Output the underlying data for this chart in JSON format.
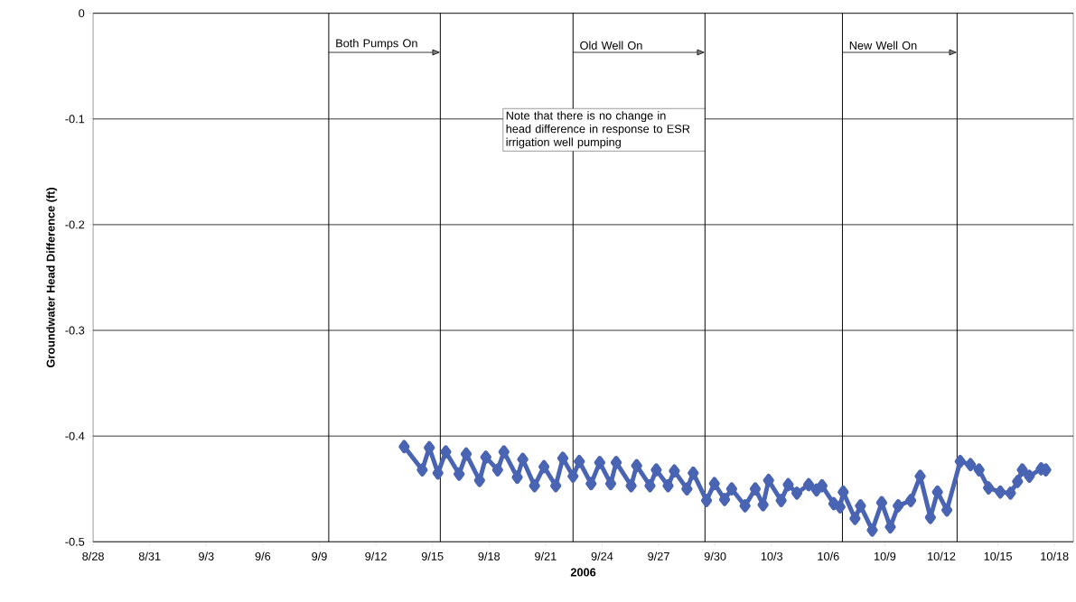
{
  "chart_data": {
    "type": "line",
    "xlabel": "2006",
    "ylabel": "Groundwater Head Difference (ft)",
    "xlim": [
      "2006-08-28",
      "2006-10-19"
    ],
    "ylim": [
      -0.5,
      0
    ],
    "xticks": [
      {
        "value": "2006-08-28",
        "label": "8/28"
      },
      {
        "value": "2006-08-31",
        "label": "8/31"
      },
      {
        "value": "2006-09-03",
        "label": "9/3"
      },
      {
        "value": "2006-09-06",
        "label": "9/6"
      },
      {
        "value": "2006-09-09",
        "label": "9/9"
      },
      {
        "value": "2006-09-12",
        "label": "9/12"
      },
      {
        "value": "2006-09-15",
        "label": "9/15"
      },
      {
        "value": "2006-09-18",
        "label": "9/18"
      },
      {
        "value": "2006-09-21",
        "label": "9/21"
      },
      {
        "value": "2006-09-24",
        "label": "9/24"
      },
      {
        "value": "2006-09-27",
        "label": "9/27"
      },
      {
        "value": "2006-09-30",
        "label": "9/30"
      },
      {
        "value": "2006-10-03",
        "label": "10/3"
      },
      {
        "value": "2006-10-06",
        "label": "10/6"
      },
      {
        "value": "2006-10-09",
        "label": "10/9"
      },
      {
        "value": "2006-10-12",
        "label": "10/12"
      },
      {
        "value": "2006-10-15",
        "label": "10/15"
      },
      {
        "value": "2006-10-18",
        "label": "10/18"
      }
    ],
    "yticks": [
      0,
      -0.1,
      -0.2,
      -0.3,
      -0.4,
      -0.5
    ],
    "grid": "y",
    "marker": "diamond",
    "line_style": "solid",
    "series": [
      {
        "color": "#4a64b4",
        "x": [
          "2006-09-13T12:00",
          "2006-09-14T11:00",
          "2006-09-14T20:00",
          "2006-09-15T07:00",
          "2006-09-15T17:00",
          "2006-09-16T10:00",
          "2006-09-16T19:00",
          "2006-09-17T12:00",
          "2006-09-17T20:00",
          "2006-09-18T11:00",
          "2006-09-18T19:00",
          "2006-09-19T12:00",
          "2006-09-19T19:00",
          "2006-09-20T10:00",
          "2006-09-20T22:00",
          "2006-09-21T13:00",
          "2006-09-21T22:00",
          "2006-09-22T11:00",
          "2006-09-22T19:00",
          "2006-09-23T10:00",
          "2006-09-23T21:00",
          "2006-09-24T11:00",
          "2006-09-24T18:00",
          "2006-09-25T13:00",
          "2006-09-25T20:00",
          "2006-09-26T13:00",
          "2006-09-26T21:00",
          "2006-09-27T12:00",
          "2006-09-27T20:00",
          "2006-09-28T12:00",
          "2006-09-28T20:00",
          "2006-09-29T13:00",
          "2006-09-29T23:00",
          "2006-09-30T12:00",
          "2006-09-30T21:00",
          "2006-10-01T14:00",
          "2006-10-02T03:00",
          "2006-10-02T13:00",
          "2006-10-02T20:00",
          "2006-10-03T12:00",
          "2006-10-03T21:00",
          "2006-10-04T08:00",
          "2006-10-04T23:00",
          "2006-10-05T09:00",
          "2006-10-05T16:00",
          "2006-10-06T07:00",
          "2006-10-06T15:00",
          "2006-10-06T19:00",
          "2006-10-07T10:00",
          "2006-10-07T17:00",
          "2006-10-08T08:00",
          "2006-10-08T20:00",
          "2006-10-09T07:00",
          "2006-10-09T17:00",
          "2006-10-10T09:00",
          "2006-10-10T21:00",
          "2006-10-11T10:00",
          "2006-10-11T19:00",
          "2006-10-12T07:00",
          "2006-10-13T00:00",
          "2006-10-13T13:00",
          "2006-10-14T00:00",
          "2006-10-14T12:00",
          "2006-10-15T03:00",
          "2006-10-15T16:00",
          "2006-10-16T01:00",
          "2006-10-16T07:00",
          "2006-10-16T16:00",
          "2006-10-17T07:00",
          "2006-10-17T13:00"
        ],
        "values": [
          -0.41,
          -0.432,
          -0.411,
          -0.435,
          -0.415,
          -0.436,
          -0.417,
          -0.442,
          -0.42,
          -0.432,
          -0.415,
          -0.439,
          -0.422,
          -0.447,
          -0.429,
          -0.447,
          -0.421,
          -0.438,
          -0.424,
          -0.445,
          -0.425,
          -0.445,
          -0.425,
          -0.447,
          -0.428,
          -0.447,
          -0.432,
          -0.447,
          -0.433,
          -0.45,
          -0.435,
          -0.461,
          -0.445,
          -0.46,
          -0.45,
          -0.466,
          -0.45,
          -0.465,
          -0.442,
          -0.461,
          -0.446,
          -0.454,
          -0.446,
          -0.451,
          -0.447,
          -0.464,
          -0.467,
          -0.453,
          -0.478,
          -0.466,
          -0.489,
          -0.463,
          -0.486,
          -0.466,
          -0.461,
          -0.438,
          -0.477,
          -0.453,
          -0.47,
          -0.424,
          -0.427,
          -0.432,
          -0.449,
          -0.453,
          -0.454,
          -0.443,
          -0.432,
          -0.438,
          -0.431,
          -0.432
        ]
      }
    ],
    "ref_lines": [
      {
        "axis": "x",
        "value": "2006-09-09T12:00",
        "color": "#000000"
      },
      {
        "axis": "x",
        "value": "2006-09-15T10:00",
        "color": "#000000"
      },
      {
        "axis": "x",
        "value": "2006-09-22T11:00",
        "color": "#000000"
      },
      {
        "axis": "x",
        "value": "2006-09-29T11:00",
        "color": "#000000"
      },
      {
        "axis": "x",
        "value": "2006-10-06T18:00",
        "color": "#000000"
      },
      {
        "axis": "x",
        "value": "2006-10-12T20:00",
        "color": "#000000"
      }
    ],
    "annotations": [
      {
        "text": "Both Pumps On",
        "x": "2006-09-15T10:00",
        "y": -0.037
      },
      {
        "text": "Old Well On",
        "x": "2006-09-29T11:00",
        "y": -0.037
      },
      {
        "text": "New Well On",
        "x": "2006-10-12T20:00",
        "y": -0.037
      },
      "Note that there is no change in head difference in response to ESR irrigation well pumping"
    ]
  }
}
